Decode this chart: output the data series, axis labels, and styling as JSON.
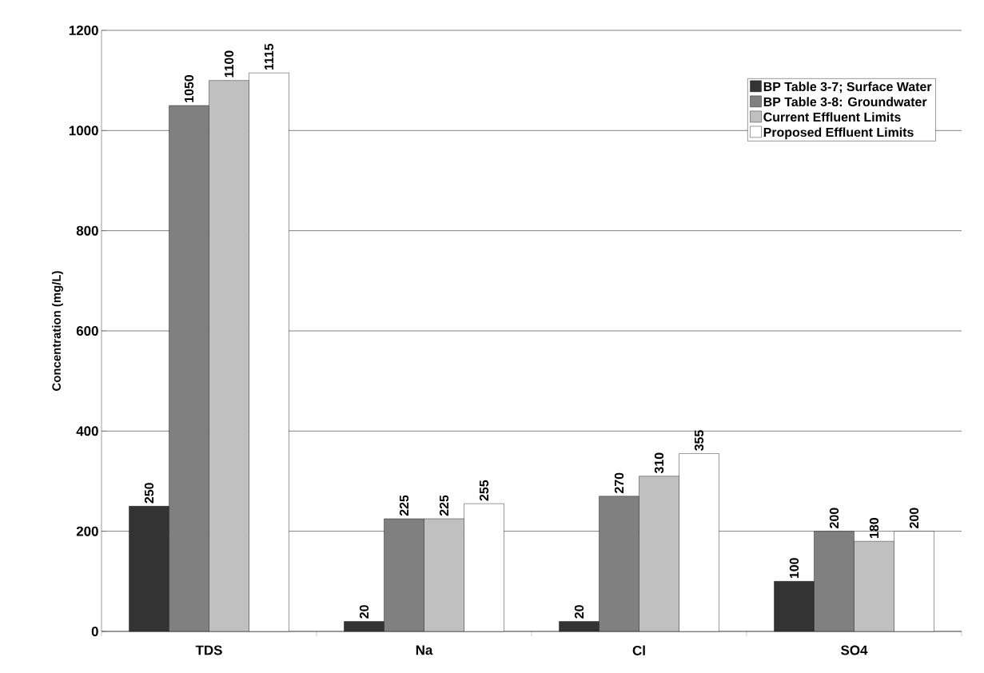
{
  "chart_data": {
    "type": "bar",
    "ylabel": "Concentration (mg/L)",
    "categories": [
      "TDS",
      "Na",
      "Cl",
      "SO4"
    ],
    "series": [
      {
        "name": "BP Table 3-7; Surface Water",
        "color": "#333333",
        "values": [
          250,
          20,
          20,
          100
        ]
      },
      {
        "name": "BP Table 3-8: Groundwater",
        "color": "#808080",
        "values": [
          1050,
          225,
          270,
          200
        ]
      },
      {
        "name": "Current Effluent Limits",
        "color": "#c0c0c0",
        "values": [
          1100,
          225,
          310,
          180
        ]
      },
      {
        "name": "Proposed Effluent Limits",
        "color": "#ffffff",
        "values": [
          1115,
          255,
          355,
          200
        ]
      }
    ],
    "ylim": [
      0,
      1200
    ],
    "yticks": [
      0,
      200,
      400,
      600,
      800,
      1000,
      1200
    ],
    "grid": "y",
    "legend": "top right",
    "data_labels": true
  }
}
